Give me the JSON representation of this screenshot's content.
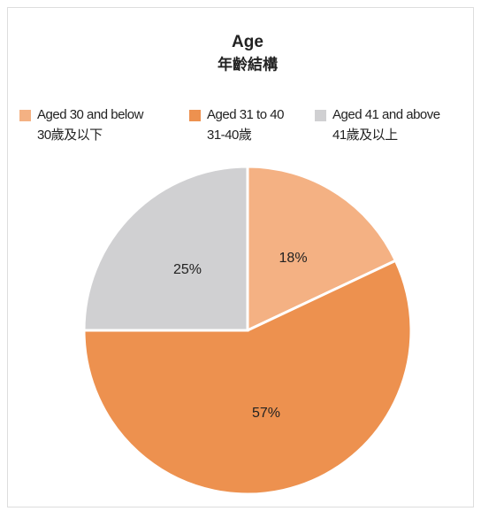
{
  "chart_data": {
    "type": "pie",
    "title": "Age",
    "subtitle": "年齡結構",
    "categories": [
      "Aged 30 and below",
      "Aged 31 to 40",
      "Aged 41 and above"
    ],
    "categories_zh": [
      "30歲及以下",
      "31-40歲",
      "41歲及以上"
    ],
    "values": [
      18,
      57,
      25
    ],
    "value_labels": [
      "18%",
      "57%",
      "25%"
    ],
    "colors": [
      "#f4b183",
      "#ed914f",
      "#d0d0d2"
    ]
  }
}
